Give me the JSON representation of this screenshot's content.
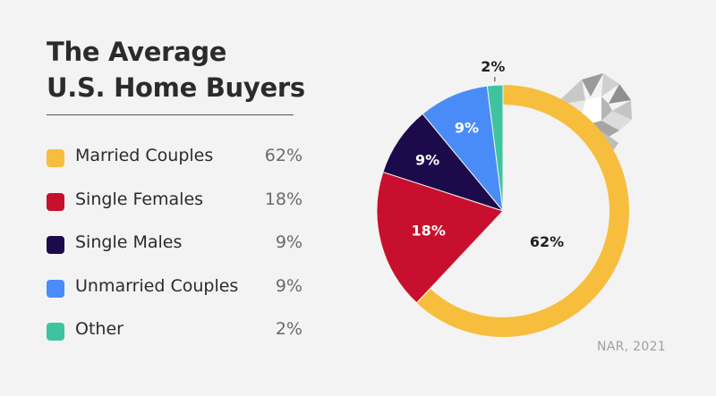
{
  "title_line1": "The Average",
  "title_line2": "U.S. Home Buyers",
  "source": "NAR, 2021",
  "chart_data": {
    "type": "pie",
    "title": "The Average U.S. Home Buyers",
    "series": [
      {
        "name": "Married Couples",
        "value": 62,
        "label": "62%",
        "color": "#f7be3e"
      },
      {
        "name": "Single Females",
        "value": 18,
        "label": "18%",
        "color": "#c8102e"
      },
      {
        "name": "Single Males",
        "value": 9,
        "label": "9%",
        "color": "#1c0a4a"
      },
      {
        "name": "Unmarried Couples",
        "value": 9,
        "label": "9%",
        "color": "#4a8cf7"
      },
      {
        "name": "Other",
        "value": 2,
        "label": "2%",
        "color": "#3ec3a0"
      }
    ],
    "decoration": "ring-with-diamond"
  }
}
